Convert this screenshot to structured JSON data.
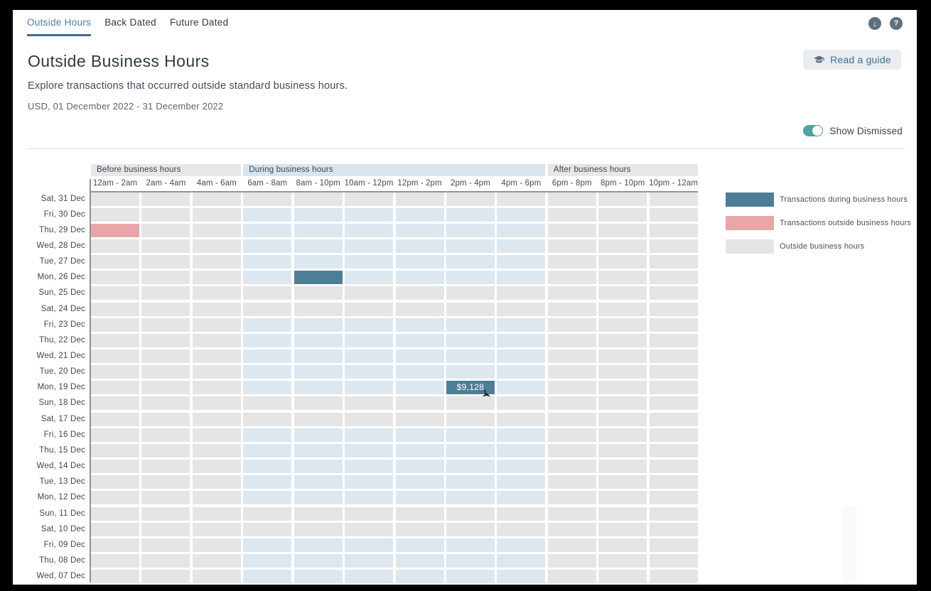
{
  "tabs": [
    {
      "label": "Outside Hours",
      "active": true
    },
    {
      "label": "Back Dated",
      "active": false
    },
    {
      "label": "Future Dated",
      "active": false
    }
  ],
  "top_icons": {
    "download_glyph": "↓",
    "help_glyph": "?"
  },
  "header": {
    "title": "Outside Business Hours",
    "subtitle": "Explore transactions that occurred outside standard business hours.",
    "period": "USD, 01 December 2022 - 31 December 2022",
    "read_guide_label": "Read a guide"
  },
  "toolbar": {
    "show_dismissed_label": "Show Dismissed",
    "toggle_on": true
  },
  "colors": {
    "accent_blue": "#4b7cab",
    "toggle_teal": "#4da4a0",
    "cell_during": "#4e7e96",
    "cell_outside": "#e9a6a9",
    "cell_open": "#dde7f0",
    "cell_closed": "#e6e5e5",
    "band_blue": "#d8e5ee",
    "band_gray": "#e7e7e7"
  },
  "chart_data": {
    "type": "heatmap",
    "group_headers": [
      {
        "label": "Before business hours",
        "col_start": 0,
        "col_span": 3,
        "tone": "gray"
      },
      {
        "label": "During business hours",
        "col_start": 3,
        "col_span": 6,
        "tone": "blue"
      },
      {
        "label": "After business hours",
        "col_start": 9,
        "col_span": 3,
        "tone": "gray"
      }
    ],
    "columns": [
      "12am - 2am",
      "2am - 4am",
      "4am - 6am",
      "6am - 8am",
      "8am - 10pm",
      "10am - 12pm",
      "12pm - 2pm",
      "2pm - 4pm",
      "4pm - 6pm",
      "6pm - 8pm",
      "8pm - 10pm",
      "10pm - 12am"
    ],
    "business_hours_columns": [
      3,
      4,
      5,
      6,
      7,
      8
    ],
    "weekend_prefixes": [
      "Sat",
      "Sun"
    ],
    "rows": [
      "Sat, 31 Dec",
      "Fri, 30 Dec",
      "Thu, 29 Dec",
      "Wed, 28 Dec",
      "Tue, 27 Dec",
      "Mon, 26 Dec",
      "Sun, 25 Dec",
      "Sat, 24 Dec",
      "Fri, 23 Dec",
      "Thu, 22 Dec",
      "Wed, 21 Dec",
      "Tue, 20 Dec",
      "Mon, 19 Dec",
      "Sun, 18 Dec",
      "Sat, 17 Dec",
      "Fri, 16 Dec",
      "Thu, 15 Dec",
      "Wed, 14 Dec",
      "Tue, 13 Dec",
      "Mon, 12 Dec",
      "Sun, 11 Dec",
      "Sat, 10 Dec",
      "Fri, 09 Dec",
      "Thu, 08 Dec",
      "Wed, 07 Dec"
    ],
    "cells": [
      {
        "row": "Thu, 29 Dec",
        "column": "12am - 2am",
        "type": "outside",
        "value": ""
      },
      {
        "row": "Mon, 26 Dec",
        "column": "8am - 10pm",
        "type": "during",
        "value": ""
      },
      {
        "row": "Mon, 19 Dec",
        "column": "2pm - 4pm",
        "type": "during",
        "value": "$9,128",
        "hovered": true
      }
    ],
    "legend": [
      {
        "label": "Transactions during business hours",
        "color": "#4e7e96"
      },
      {
        "label": "Transactions outside business hours",
        "color": "#e9a6a9"
      },
      {
        "label": "Outside business hours",
        "color": "#e6e5e5"
      }
    ]
  }
}
